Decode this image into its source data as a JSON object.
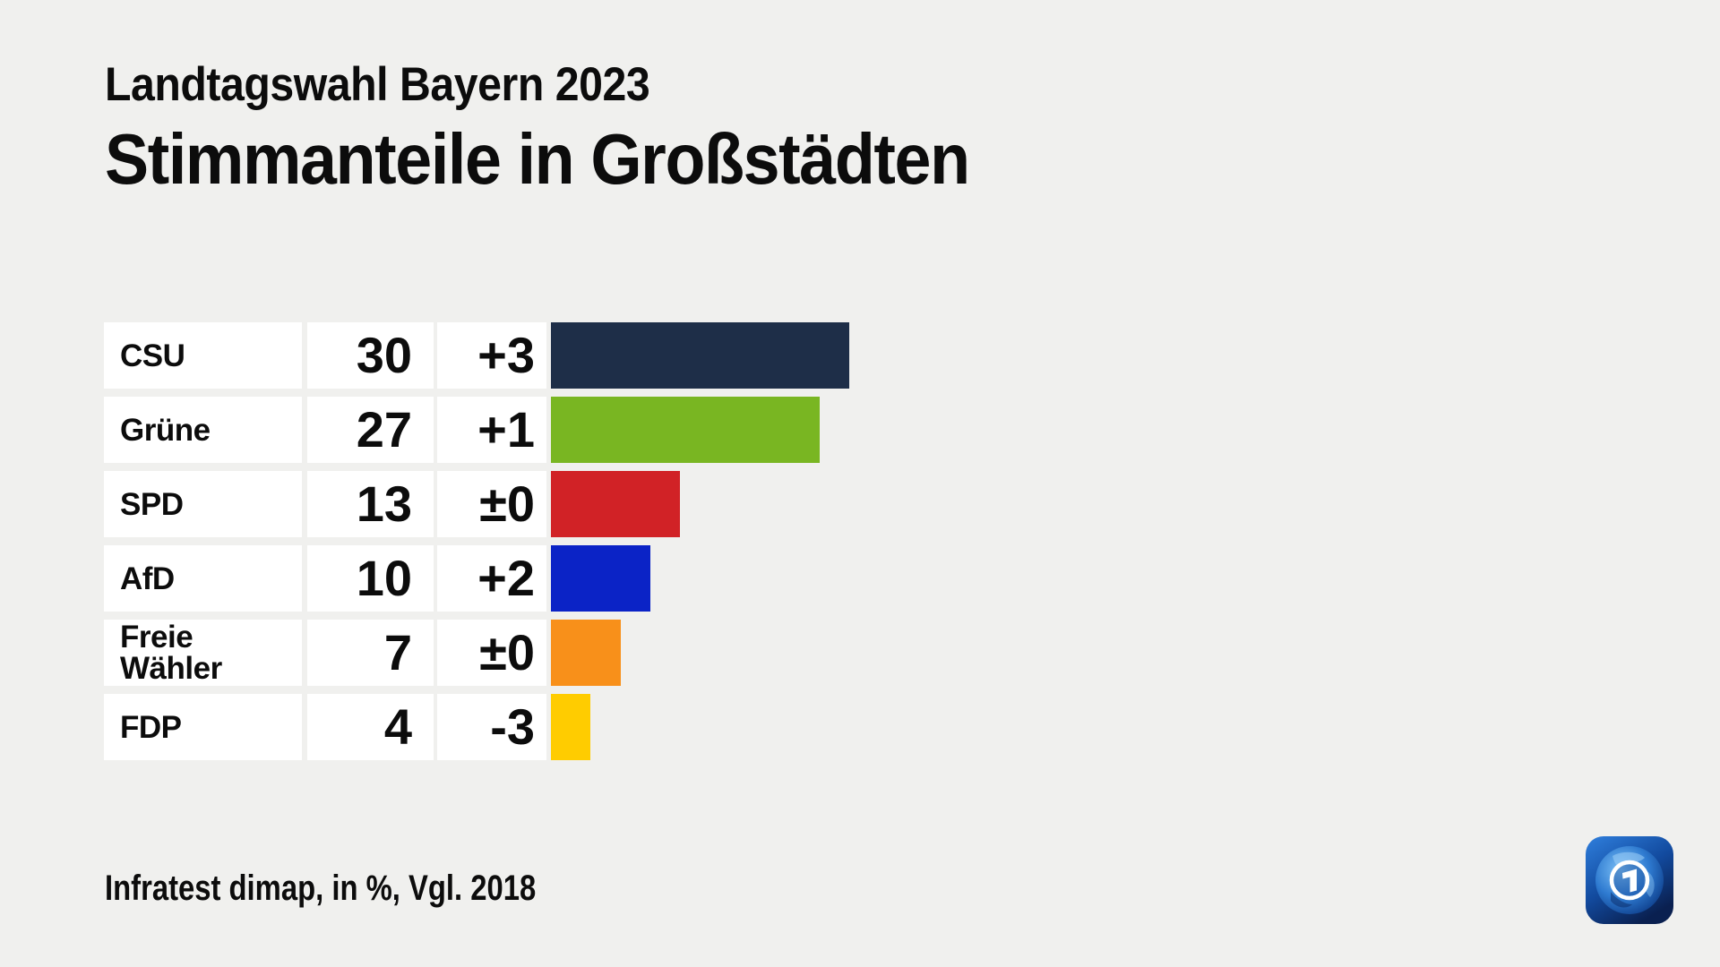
{
  "header": {
    "subtitle": "Landtagswahl Bayern 2023",
    "title": "Stimmanteile in Großstädten"
  },
  "footer": {
    "source": "Infratest dimap, in %, Vgl. 2018"
  },
  "logo": {
    "name": "ARD tagesschau globe logo"
  },
  "chart_data": {
    "type": "bar",
    "orientation": "horizontal",
    "title": "Stimmanteile in Großstädten",
    "subtitle": "Landtagswahl Bayern 2023",
    "unit": "%",
    "comparison": "Vgl. 2018",
    "xlim": [
      0,
      30
    ],
    "grid": false,
    "legend": false,
    "categories": [
      "CSU",
      "Grüne",
      "SPD",
      "AfD",
      "Freie Wähler",
      "FDP"
    ],
    "series": [
      {
        "name": "Stimmanteil in %",
        "values": [
          30,
          27,
          13,
          10,
          7,
          4
        ]
      },
      {
        "name": "Veränderung Vgl. 2018",
        "values": [
          "+3",
          "+1",
          "±0",
          "+2",
          "±0",
          "-3"
        ]
      }
    ],
    "colors": [
      "#1e2e48",
      "#79b622",
      "#d12226",
      "#0b23c6",
      "#f8901a",
      "#ffcc00"
    ],
    "background": "#f0f0ee",
    "row_background": "#ffffff"
  }
}
